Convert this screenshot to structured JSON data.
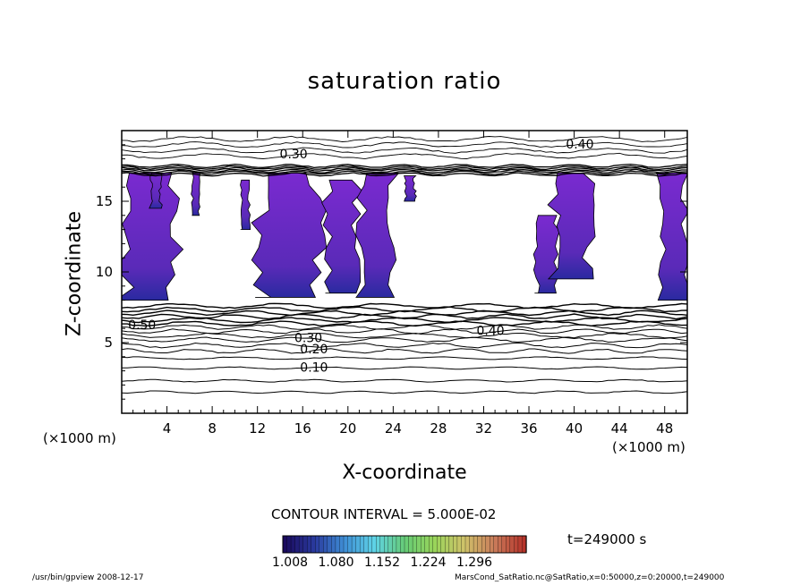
{
  "chart_data": {
    "type": "heatmap",
    "title": "saturation ratio",
    "xlabel": "X-coordinate",
    "ylabel": "Z-coordinate",
    "x_unit_left": "(×1000 m)",
    "x_unit_right": "(×1000 m)",
    "xlim": [
      0,
      50
    ],
    "ylim": [
      0,
      20
    ],
    "x_ticks": [
      4,
      8,
      12,
      16,
      20,
      24,
      28,
      32,
      36,
      40,
      44,
      48
    ],
    "y_ticks": [
      5,
      10,
      15
    ],
    "contour_interval_label": "CONTOUR INTERVAL = 5.000E-02",
    "time_label": "t=249000 s",
    "colorbar": {
      "ticks": [
        "1.008",
        "1.080",
        "1.152",
        "1.224",
        "1.296"
      ],
      "colors": [
        "#1a0a5e",
        "#2a3a9e",
        "#3f8fd6",
        "#5fd3e6",
        "#66cc77",
        "#99d45a",
        "#cfc26a",
        "#c97c5a",
        "#b5332a"
      ]
    },
    "contour_labels": [
      {
        "text": "0.40",
        "x": 40.5,
        "z": 19.0
      },
      {
        "text": "0.30",
        "x": 15.2,
        "z": 18.3
      },
      {
        "text": "0.50",
        "x": 1.8,
        "z": 6.2
      },
      {
        "text": "0.40",
        "x": 32.6,
        "z": 5.8
      },
      {
        "text": "0.30",
        "x": 16.5,
        "z": 5.3
      },
      {
        "text": "0.20",
        "x": 17.0,
        "z": 4.5
      },
      {
        "text": "0.10",
        "x": 17.0,
        "z": 3.2
      }
    ],
    "supersaturated_regions": [
      {
        "x0": 0.0,
        "x1": 5.0,
        "z0": 8.0,
        "z1": 17.0
      },
      {
        "x0": 2.5,
        "x1": 3.5,
        "z0": 14.5,
        "z1": 17.0
      },
      {
        "x0": 6.2,
        "x1": 6.9,
        "z0": 14.0,
        "z1": 17.0
      },
      {
        "x0": 10.5,
        "x1": 11.3,
        "z0": 13.0,
        "z1": 16.5
      },
      {
        "x0": 11.8,
        "x1": 17.5,
        "z0": 8.2,
        "z1": 17.0
      },
      {
        "x0": 18.0,
        "x1": 21.0,
        "z0": 8.5,
        "z1": 16.5
      },
      {
        "x0": 21.0,
        "x1": 24.2,
        "z0": 8.2,
        "z1": 17.0
      },
      {
        "x0": 25.0,
        "x1": 26.0,
        "z0": 15.0,
        "z1": 16.8
      },
      {
        "x0": 36.5,
        "x1": 38.5,
        "z0": 8.5,
        "z1": 14.0
      },
      {
        "x0": 38.0,
        "x1": 41.5,
        "z0": 9.5,
        "z1": 17.0
      },
      {
        "x0": 47.5,
        "x1": 50.0,
        "z0": 8.0,
        "z1": 17.0
      }
    ]
  },
  "footer": {
    "left": "/usr/bin/gpview   2008-12-17",
    "right": "MarsCond_SatRatio.nc@SatRatio,x=0:50000,z=0:20000,t=249000"
  }
}
